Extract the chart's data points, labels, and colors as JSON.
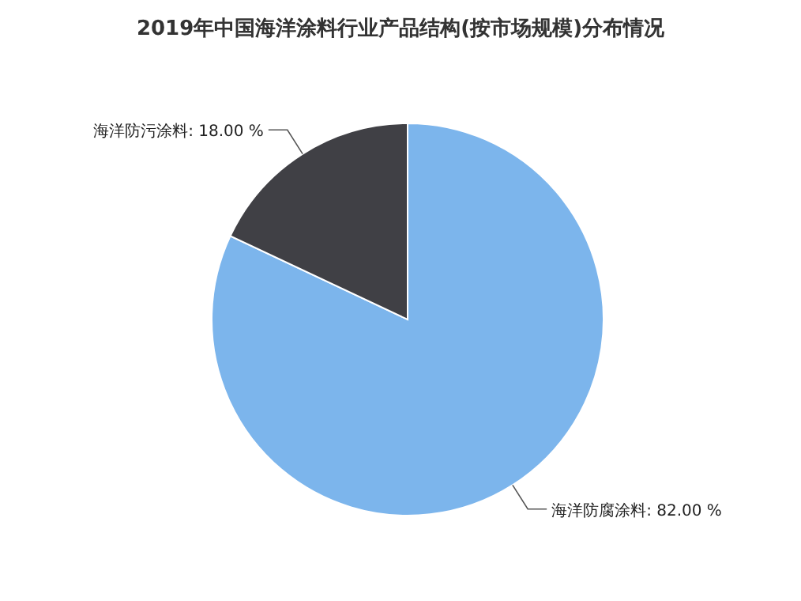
{
  "chart_data": {
    "type": "pie",
    "title": "2019年中国海洋涂料行业产品结构(按市场规模)分布情况",
    "categories": [
      "海洋防腐涂料",
      "海洋防污涂料"
    ],
    "values": [
      82.0,
      18.0
    ],
    "colors": [
      "#7cb5ec",
      "#404045"
    ],
    "value_labels": [
      "82.00 %",
      "18.00 %"
    ]
  }
}
